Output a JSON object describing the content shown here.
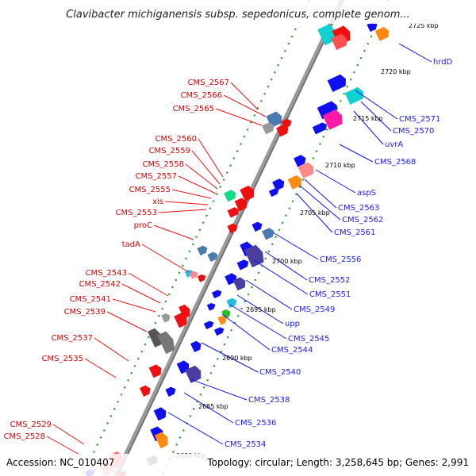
{
  "title": "Clavibacter michiganensis subsp. sepedonicus, complete genom...",
  "footer": {
    "accession": "Accession: NC_010407",
    "summary": "Topology: circular; Length: 3,258,645 bp; Genes: 2,991"
  },
  "colors": {
    "reverse_label": "#d40000",
    "forward_label": "#1a1aff",
    "backbone": "#9a9a9a",
    "tick": "#1e9b1e",
    "gene_blue": "#1010ee",
    "gene_red": "#ee1010"
  },
  "kbp_ticks": [
    "2725 kbp",
    "2720 kbp",
    "2715 kbp",
    "2710 kbp",
    "2705 kbp",
    "2700 kbp",
    "2695 kbp",
    "2690 kbp",
    "2685 kbp",
    "2680 kbp"
  ],
  "reverse_genes": [
    "CMS_2567",
    "CMS_2566",
    "CMS_2565",
    "CMS_2560",
    "CMS_2559",
    "CMS_2558",
    "CMS_2557",
    "CMS_2555",
    "xis",
    "CMS_2553",
    "proC",
    "tadA",
    "CMS_2543",
    "CMS_2542",
    "CMS_2541",
    "CMS_2539",
    "CMS_2537",
    "CMS_2535",
    "CMS_2529",
    "CMS_2528"
  ],
  "forward_genes": [
    "hrdD",
    "CMS_2571",
    "CMS_2570",
    "uvrA",
    "CMS_2568",
    "aspS",
    "CMS_2563",
    "CMS_2562",
    "CMS_2561",
    "CMS_2556",
    "CMS_2552",
    "CMS_2551",
    "CMS_2549",
    "upp",
    "CMS_2545",
    "CMS_2544",
    "CMS_2540",
    "CMS_2538",
    "CMS_2536",
    "CMS_2534"
  ]
}
